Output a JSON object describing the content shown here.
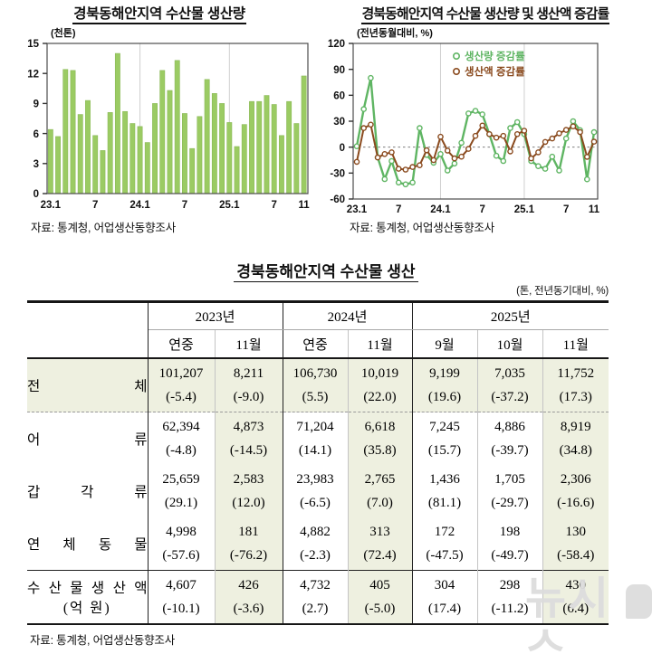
{
  "charts": {
    "production": {
      "title": "경북동해안지역 수산물 생산량",
      "source": "자료: 통계청, 어업생산동향조사"
    },
    "growth": {
      "title": "경북동해안지역 수산물 생산량 및 생산액 증감률",
      "source": "자료: 통계청, 어업생산동향조사"
    }
  },
  "chart_data": [
    {
      "type": "bar",
      "title": "경북동해안지역 수산물 생산량",
      "ylabel": "(천톤)",
      "ylim": [
        0,
        15
      ],
      "yticks": [
        0,
        3,
        6,
        9,
        12,
        15
      ],
      "categories": [
        "23.1",
        "23.2",
        "23.3",
        "23.4",
        "23.5",
        "23.6",
        "23.7",
        "23.8",
        "23.9",
        "23.10",
        "23.11",
        "23.12",
        "24.1",
        "24.2",
        "24.3",
        "24.4",
        "24.5",
        "24.6",
        "24.7",
        "24.8",
        "24.9",
        "24.10",
        "24.11",
        "24.12",
        "25.1",
        "25.2",
        "25.3",
        "25.4",
        "25.5",
        "25.6",
        "25.7",
        "25.8",
        "25.9",
        "25.10",
        "25.11"
      ],
      "values": [
        6.4,
        5.7,
        12.4,
        12.3,
        7.9,
        9.3,
        5.8,
        4.3,
        8.1,
        14.0,
        8.2,
        7.0,
        6.7,
        5.1,
        9.0,
        12.3,
        10.3,
        13.3,
        8.0,
        4.5,
        7.7,
        11.4,
        10.0,
        9.0,
        7.1,
        4.7,
        6.9,
        9.2,
        9.2,
        9.8,
        8.9,
        5.8,
        9.2,
        7.0,
        11.75
      ],
      "x_tick_labels": [
        "23.1",
        "7",
        "24.1",
        "7",
        "25.1",
        "7",
        "11"
      ],
      "x_tick_indices": [
        0,
        6,
        12,
        18,
        24,
        30,
        34
      ],
      "vgrid_indices": [
        12,
        24
      ],
      "bar_color": "#9bcb63",
      "bar_edge": "#8ab957",
      "grid": "vertical-only",
      "source": "자료: 통계청, 어업생산동향조사"
    },
    {
      "type": "line",
      "title": "경북동해안지역 수산물 생산량 및 생산액 증감률",
      "ylabel": "(전년동월대비, %)",
      "ylim": [
        -60,
        120
      ],
      "yticks": [
        -60,
        -30,
        0,
        30,
        60,
        90,
        120
      ],
      "categories": [
        "23.1",
        "23.2",
        "23.3",
        "23.4",
        "23.5",
        "23.6",
        "23.7",
        "23.8",
        "23.9",
        "23.10",
        "23.11",
        "23.12",
        "24.1",
        "24.2",
        "24.3",
        "24.4",
        "24.5",
        "24.6",
        "24.7",
        "24.8",
        "24.9",
        "24.10",
        "24.11",
        "24.12",
        "25.1",
        "25.2",
        "25.3",
        "25.4",
        "25.5",
        "25.6",
        "25.7",
        "25.8",
        "25.9",
        "25.10",
        "25.11"
      ],
      "series": [
        {
          "name": "생산량 증감률",
          "color": "#5fb563",
          "values": [
            1,
            44,
            80,
            -12,
            -37,
            -16,
            -41,
            -43,
            -41,
            22,
            -9,
            -18,
            -8,
            -27,
            -19,
            5,
            39,
            42,
            38,
            15,
            -10,
            -16,
            22,
            29,
            15,
            -16,
            -22,
            -25,
            -11,
            -27,
            10,
            30,
            19.6,
            -37.2,
            17.3
          ]
        },
        {
          "name": "생산액 증감률",
          "color": "#8a4a1e",
          "values": [
            -17,
            22,
            26,
            -12,
            -8,
            -6,
            -25,
            -26,
            -23,
            -21,
            -3.6,
            -15,
            12,
            -4,
            -13,
            -11,
            -2,
            13,
            25,
            15,
            11,
            13,
            -5,
            15,
            19,
            -13,
            -6,
            6,
            10,
            16,
            20,
            24,
            17.4,
            -11.2,
            6.4
          ]
        }
      ],
      "x_tick_labels": [
        "23.1",
        "7",
        "24.1",
        "7",
        "25.1",
        "7",
        "11"
      ],
      "x_tick_indices": [
        0,
        6,
        12,
        18,
        24,
        30,
        34
      ],
      "vgrid_indices": [
        12,
        24
      ],
      "zero_line": "dashed",
      "legend_position": "top-center-inside",
      "marker": "open-circle",
      "source": "자료: 통계청, 어업생산동향조사"
    }
  ],
  "table": {
    "title": "경북동해안지역 수산물 생산",
    "unit_note": "(톤, 전년동기대비, %)",
    "source": "자료: 통계청, 어업생산동향조사",
    "col_groups": [
      {
        "label": "2023년",
        "cols": [
          "연중",
          "11월"
        ]
      },
      {
        "label": "2024년",
        "cols": [
          "연중",
          "11월"
        ]
      },
      {
        "label": "2025년",
        "cols": [
          "9월",
          "10월",
          "11월"
        ]
      }
    ],
    "highlight_cols": [
      1,
      3,
      6
    ],
    "bold_col": 6,
    "rows": [
      {
        "label_chars": [
          "전",
          "체"
        ],
        "highlight_row": true,
        "values": [
          "101,207",
          "8,211",
          "106,730",
          "10,019",
          "9,199",
          "7,035",
          "11,752"
        ],
        "pcts": [
          "(-5.4)",
          "(-9.0)",
          "(5.5)",
          "(22.0)",
          "(19.6)",
          "(-37.2)",
          "(17.3)"
        ]
      },
      {
        "label_chars": [
          "어",
          "류"
        ],
        "values": [
          "62,394",
          "4,873",
          "71,204",
          "6,618",
          "7,245",
          "4,886",
          "8,919"
        ],
        "pcts": [
          "(-4.8)",
          "(-14.5)",
          "(14.1)",
          "(35.8)",
          "(15.7)",
          "(-39.7)",
          "(34.8)"
        ]
      },
      {
        "label_chars": [
          "갑",
          "각",
          "류"
        ],
        "values": [
          "25,659",
          "2,583",
          "23,983",
          "2,765",
          "1,436",
          "1,705",
          "2,306"
        ],
        "pcts": [
          "(29.1)",
          "(12.0)",
          "(-6.5)",
          "(7.0)",
          "(81.1)",
          "(-29.7)",
          "(-16.6)"
        ]
      },
      {
        "label_chars": [
          "연",
          "체",
          "동",
          "물"
        ],
        "values": [
          "4,998",
          "181",
          "4,882",
          "313",
          "172",
          "198",
          "130"
        ],
        "pcts": [
          "(-57.6)",
          "(-76.2)",
          "(-2.3)",
          "(72.4)",
          "(-47.5)",
          "(-49.7)",
          "(-58.4)"
        ]
      },
      {
        "label_chars": [
          "수",
          "산",
          "물",
          "생",
          "산",
          "액"
        ],
        "label_line2": "(억 원)",
        "top_border": true,
        "values": [
          "4,607",
          "426",
          "4,732",
          "405",
          "304",
          "298",
          "430"
        ],
        "pcts": [
          "(-10.1)",
          "(-3.6)",
          "(2.7)",
          "(-5.0)",
          "(17.4)",
          "(-11.2)",
          "(6.4)"
        ]
      }
    ]
  },
  "watermark": {
    "text": "뉴시스"
  }
}
